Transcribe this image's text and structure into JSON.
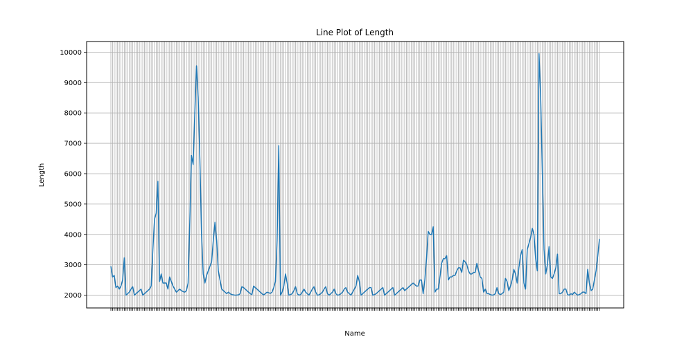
{
  "chart_data": {
    "type": "line",
    "title": "Line Plot of Length",
    "xlabel": "Name",
    "ylabel": "Length",
    "ylim": [
      1580,
      10350
    ],
    "yticks": [
      2000,
      3000,
      4000,
      5000,
      6000,
      7000,
      8000,
      9000,
      10000
    ],
    "grid": true,
    "line_color": "#1f77b4",
    "series": [
      {
        "values": [
          2950,
          2600,
          2650,
          2250,
          2300,
          2200,
          2300,
          2500,
          3230,
          2000,
          2050,
          2100,
          2200,
          2280,
          2000,
          2050,
          2100,
          2150,
          2200,
          2000,
          2050,
          2100,
          2150,
          2200,
          2300,
          3500,
          4500,
          4700,
          5750,
          2450,
          2700,
          2400,
          2400,
          2400,
          2200,
          2600,
          2450,
          2300,
          2200,
          2100,
          2150,
          2200,
          2150,
          2120,
          2100,
          2150,
          2400,
          4400,
          6600,
          6300,
          8000,
          9550,
          8500,
          6500,
          4000,
          2700,
          2400,
          2650,
          2800,
          2950,
          3100,
          3800,
          4400,
          3800,
          2800,
          2500,
          2200,
          2150,
          2100,
          2050,
          2100,
          2050,
          2020,
          2010,
          2000,
          2005,
          2010,
          2050,
          2280,
          2250,
          2200,
          2150,
          2100,
          2050,
          2020,
          2300,
          2250,
          2200,
          2150,
          2100,
          2050,
          2010,
          2050,
          2100,
          2080,
          2060,
          2100,
          2250,
          2450,
          3800,
          6920,
          2000,
          2100,
          2300,
          2700,
          2400,
          2000,
          2020,
          2050,
          2150,
          2280,
          2050,
          2000,
          2020,
          2100,
          2200,
          2100,
          2050,
          2000,
          2100,
          2200,
          2280,
          2100,
          2000,
          2010,
          2050,
          2100,
          2200,
          2280,
          2050,
          2000,
          2050,
          2100,
          2200,
          2050,
          2000,
          2010,
          2050,
          2100,
          2200,
          2250,
          2100,
          2050,
          2000,
          2100,
          2200,
          2300,
          2650,
          2450,
          2000,
          2050,
          2100,
          2150,
          2200,
          2250,
          2250,
          2000,
          2020,
          2050,
          2100,
          2150,
          2200,
          2250,
          2000,
          2050,
          2100,
          2150,
          2200,
          2250,
          2000,
          2050,
          2100,
          2150,
          2200,
          2250,
          2150,
          2200,
          2250,
          2300,
          2350,
          2400,
          2350,
          2300,
          2300,
          2500,
          2500,
          2050,
          2500,
          3200,
          4100,
          4000,
          4000,
          4250,
          2100,
          2200,
          2200,
          2600,
          3050,
          3200,
          3200,
          3300,
          2500,
          2600,
          2600,
          2650,
          2650,
          2800,
          2900,
          2900,
          2750,
          3150,
          3100,
          3000,
          2800,
          2700,
          2700,
          2750,
          2750,
          3050,
          2800,
          2600,
          2550,
          2100,
          2200,
          2050,
          2050,
          2020,
          2000,
          2010,
          2050,
          2250,
          2050,
          2020,
          2050,
          2100,
          2550,
          2450,
          2150,
          2300,
          2500,
          2850,
          2700,
          2400,
          2900,
          3300,
          3500,
          2400,
          2200,
          3500,
          3700,
          3900,
          4200,
          4000,
          3200,
          2800,
          9950,
          8500,
          6000,
          3500,
          2700,
          3000,
          3600,
          2600,
          2550,
          2700,
          2900,
          3350,
          2050,
          2050,
          2100,
          2200,
          2200,
          2020,
          2000,
          2050,
          2020,
          2100,
          2050,
          2000,
          2020,
          2050,
          2100,
          2100,
          2050,
          2850,
          2400,
          2150,
          2200,
          2500,
          2800,
          3300,
          3850
        ]
      }
    ]
  }
}
